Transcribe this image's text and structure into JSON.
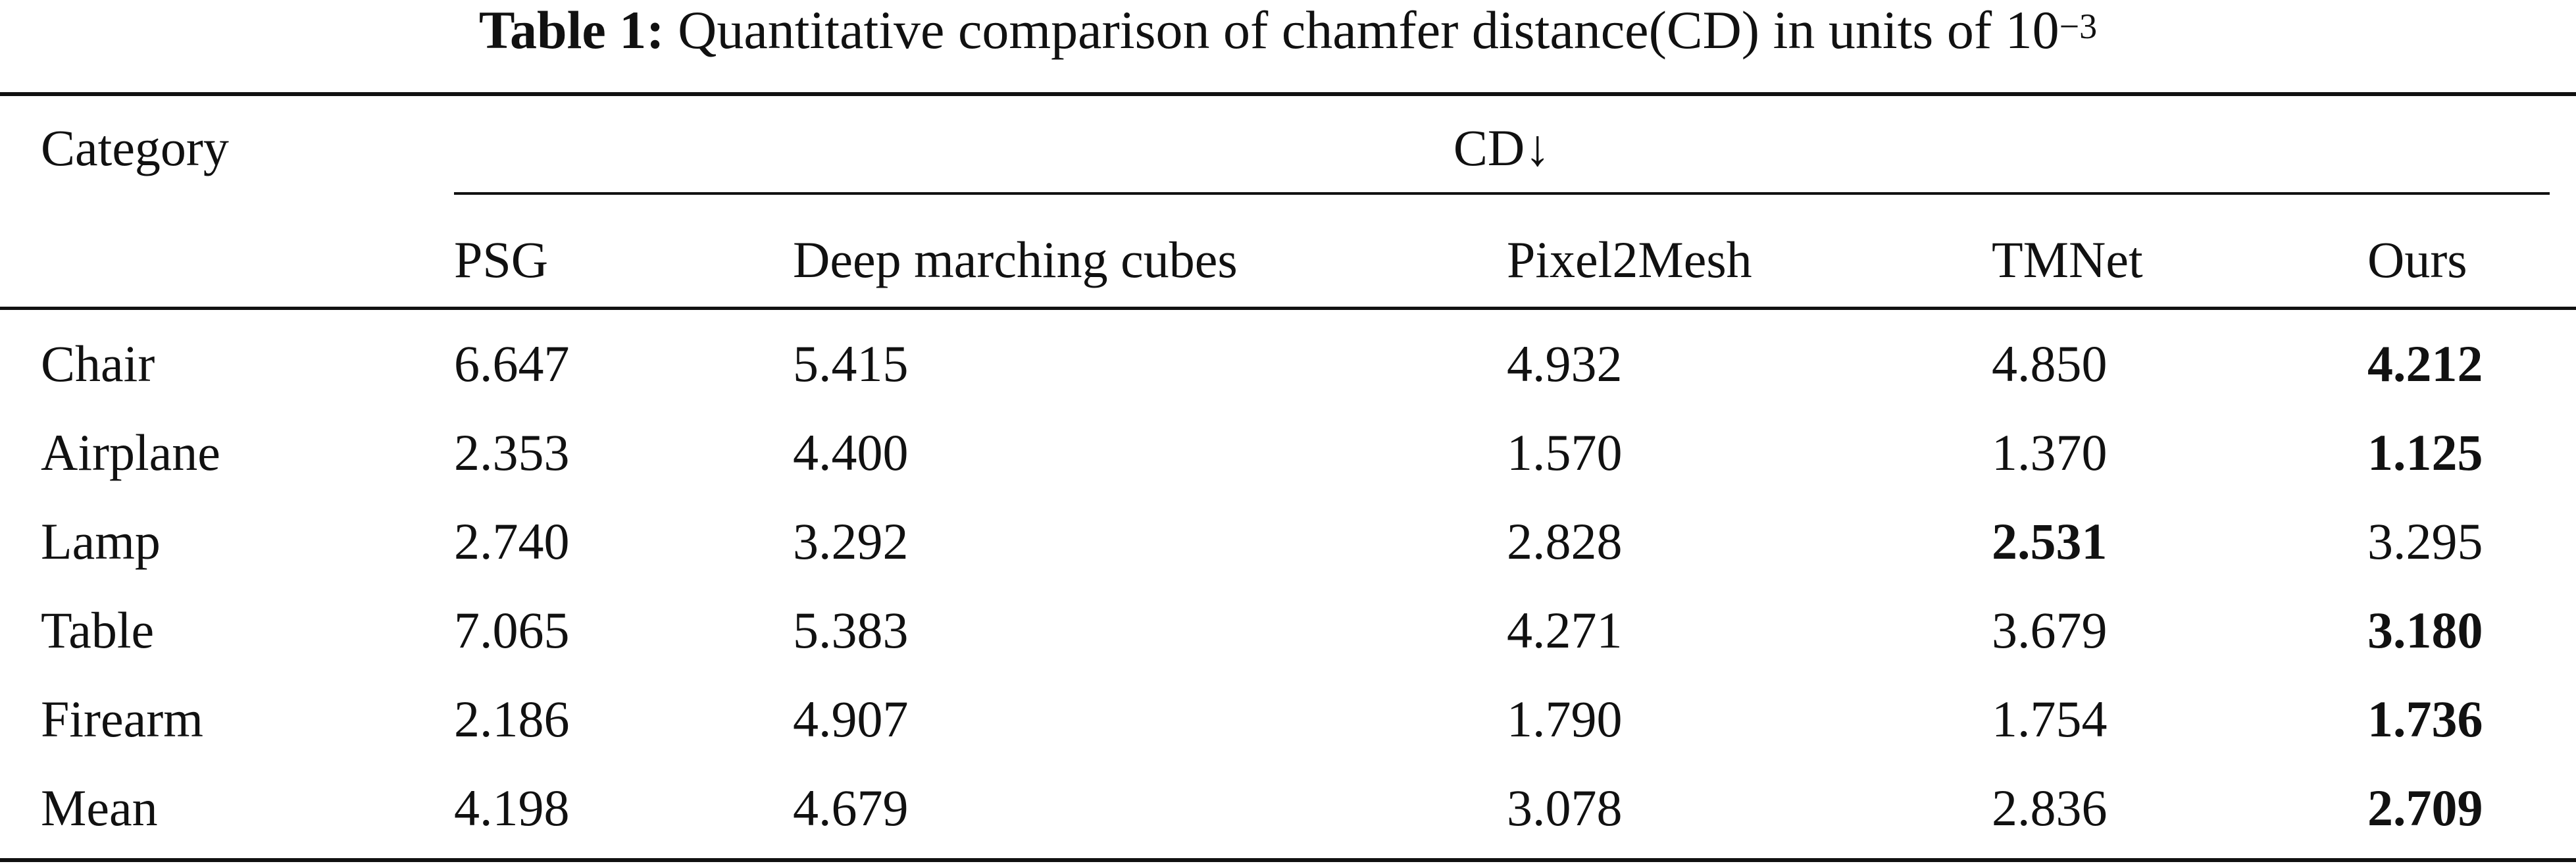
{
  "caption": {
    "label": "Table 1:",
    "text": "Quantitative comparison of chamfer distance(CD) in units of 10",
    "exponent": "−3"
  },
  "header": {
    "category": "Category",
    "group": "CD↓",
    "methods": [
      "PSG",
      "Deep marching cubes",
      "Pixel2Mesh",
      "TMNet",
      "Ours"
    ]
  },
  "rows": [
    {
      "category": "Chair",
      "values": [
        "6.647",
        "5.415",
        "4.932",
        "4.850",
        "4.212"
      ]
    },
    {
      "category": "Airplane",
      "values": [
        "2.353",
        "4.400",
        "1.570",
        "1.370",
        "1.125"
      ]
    },
    {
      "category": "Lamp",
      "values": [
        "2.740",
        "3.292",
        "2.828",
        "2.531",
        "3.295"
      ]
    },
    {
      "category": "Table",
      "values": [
        "7.065",
        "5.383",
        "4.271",
        "3.679",
        "3.180"
      ]
    },
    {
      "category": "Firearm",
      "values": [
        "2.186",
        "4.907",
        "1.790",
        "1.754",
        "1.736"
      ]
    },
    {
      "category": "Mean",
      "values": [
        "4.198",
        "4.679",
        "3.078",
        "2.836",
        "2.709"
      ]
    }
  ]
}
